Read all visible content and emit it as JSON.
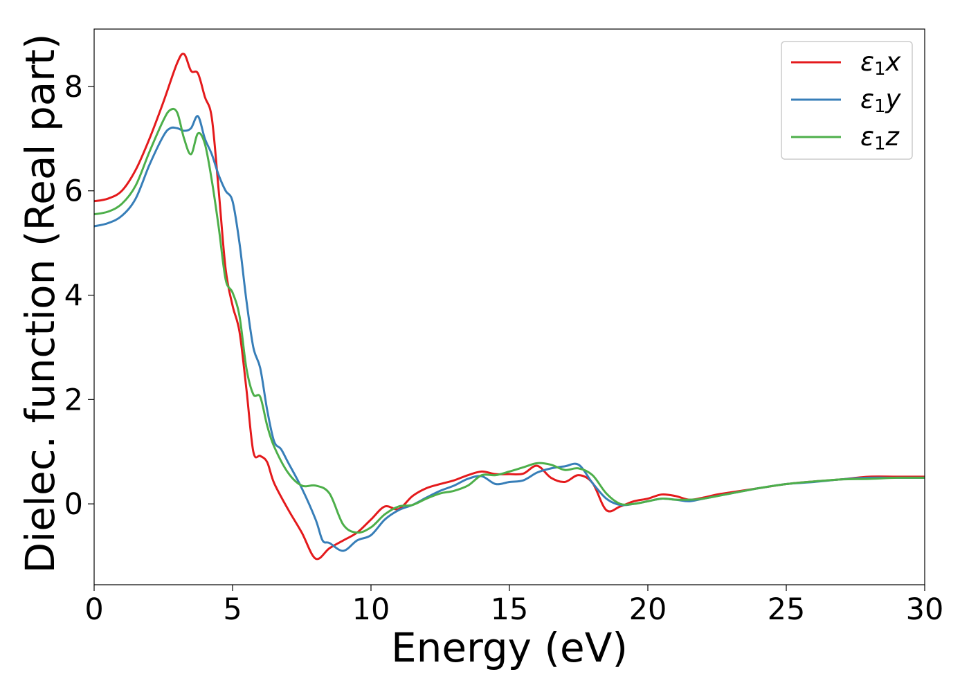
{
  "chart_data": {
    "type": "line",
    "title": "",
    "xlabel": "Energy (eV)",
    "ylabel": "Dielec. function (Real part)",
    "xlim": [
      0,
      30
    ],
    "ylim": [
      -1.55,
      9.1
    ],
    "xticks": [
      0,
      5,
      10,
      15,
      20,
      25,
      30
    ],
    "yticks": [
      0,
      2,
      4,
      6,
      8
    ],
    "grid": false,
    "legend_position": "top-right",
    "series": [
      {
        "name": "ε₁x",
        "legend": {
          "base": "ε",
          "sub": "1",
          "var": "x"
        },
        "color": "#e41a1c",
        "x": [
          0,
          0.5,
          1.0,
          1.5,
          2.0,
          2.5,
          3.0,
          3.25,
          3.5,
          3.75,
          4.0,
          4.25,
          4.5,
          4.75,
          5.0,
          5.25,
          5.5,
          5.75,
          6.0,
          6.25,
          6.5,
          7.0,
          7.5,
          8.0,
          8.5,
          9.0,
          9.5,
          10.0,
          10.5,
          11.0,
          11.5,
          12.0,
          12.5,
          13.0,
          13.5,
          14.0,
          14.5,
          15.0,
          15.5,
          16.0,
          16.5,
          17.0,
          17.5,
          18.0,
          18.5,
          19.0,
          19.5,
          20.0,
          20.5,
          21.0,
          21.5,
          22.0,
          22.5,
          23.0,
          24.0,
          25.0,
          26.0,
          27.0,
          28.0,
          29.0,
          30.0
        ],
        "values": [
          5.8,
          5.85,
          6.0,
          6.4,
          7.0,
          7.7,
          8.45,
          8.62,
          8.3,
          8.25,
          7.8,
          7.4,
          6.0,
          4.5,
          3.8,
          3.3,
          2.2,
          1.0,
          0.92,
          0.8,
          0.4,
          -0.1,
          -0.55,
          -1.05,
          -0.85,
          -0.7,
          -0.55,
          -0.3,
          -0.05,
          -0.1,
          0.15,
          0.3,
          0.38,
          0.45,
          0.55,
          0.62,
          0.57,
          0.57,
          0.58,
          0.73,
          0.5,
          0.42,
          0.55,
          0.4,
          -0.12,
          -0.05,
          0.05,
          0.1,
          0.18,
          0.15,
          0.08,
          0.12,
          0.18,
          0.22,
          0.3,
          0.38,
          0.43,
          0.47,
          0.52,
          0.52,
          0.52
        ]
      },
      {
        "name": "ε₁y",
        "legend": {
          "base": "ε",
          "sub": "1",
          "var": "y"
        },
        "color": "#377eb8",
        "x": [
          0,
          0.5,
          1.0,
          1.5,
          2.0,
          2.5,
          2.75,
          3.0,
          3.25,
          3.5,
          3.75,
          4.0,
          4.25,
          4.5,
          4.75,
          5.0,
          5.25,
          5.5,
          5.75,
          6.0,
          6.25,
          6.5,
          6.75,
          7.0,
          7.5,
          8.0,
          8.25,
          8.5,
          9.0,
          9.5,
          10.0,
          10.5,
          11.0,
          11.5,
          12.0,
          12.5,
          13.0,
          13.5,
          14.0,
          14.5,
          15.0,
          15.5,
          16.0,
          16.5,
          17.0,
          17.5,
          18.0,
          18.5,
          19.0,
          19.5,
          20.0,
          20.5,
          21.0,
          21.5,
          22.0,
          23.0,
          24.0,
          25.0,
          26.0,
          27.0,
          28.0,
          29.0,
          30.0
        ],
        "values": [
          5.32,
          5.38,
          5.52,
          5.85,
          6.5,
          7.05,
          7.2,
          7.2,
          7.15,
          7.2,
          7.43,
          7.0,
          6.7,
          6.3,
          6.0,
          5.8,
          5.0,
          3.9,
          3.0,
          2.6,
          1.8,
          1.2,
          1.05,
          0.8,
          0.3,
          -0.3,
          -0.7,
          -0.75,
          -0.9,
          -0.7,
          -0.6,
          -0.3,
          -0.12,
          -0.02,
          0.12,
          0.25,
          0.35,
          0.48,
          0.53,
          0.38,
          0.42,
          0.45,
          0.6,
          0.68,
          0.72,
          0.75,
          0.4,
          0.1,
          -0.02,
          0.0,
          0.05,
          0.1,
          0.08,
          0.05,
          0.1,
          0.2,
          0.3,
          0.38,
          0.42,
          0.47,
          0.5,
          0.5,
          0.5
        ]
      },
      {
        "name": "ε₁z",
        "legend": {
          "base": "ε",
          "sub": "1",
          "var": "z"
        },
        "color": "#4daf4a",
        "x": [
          0,
          0.5,
          1.0,
          1.5,
          2.0,
          2.5,
          2.75,
          3.0,
          3.25,
          3.5,
          3.75,
          4.0,
          4.25,
          4.5,
          4.75,
          5.0,
          5.25,
          5.5,
          5.75,
          6.0,
          6.25,
          6.5,
          7.0,
          7.5,
          8.0,
          8.5,
          9.0,
          9.5,
          10.0,
          10.5,
          11.0,
          11.5,
          12.0,
          12.5,
          13.0,
          13.5,
          14.0,
          14.5,
          15.0,
          15.5,
          16.0,
          16.5,
          17.0,
          17.5,
          18.0,
          18.5,
          19.0,
          19.5,
          20.0,
          20.5,
          21.0,
          21.5,
          22.0,
          23.0,
          24.0,
          25.0,
          26.0,
          27.0,
          28.0,
          29.0,
          30.0
        ],
        "values": [
          5.55,
          5.6,
          5.75,
          6.1,
          6.75,
          7.35,
          7.55,
          7.5,
          7.0,
          6.7,
          7.1,
          6.9,
          6.2,
          5.3,
          4.3,
          4.05,
          3.6,
          2.6,
          2.1,
          2.05,
          1.5,
          1.1,
          0.6,
          0.35,
          0.35,
          0.2,
          -0.4,
          -0.55,
          -0.45,
          -0.2,
          -0.05,
          -0.02,
          0.1,
          0.2,
          0.25,
          0.35,
          0.55,
          0.55,
          0.62,
          0.7,
          0.78,
          0.75,
          0.65,
          0.68,
          0.55,
          0.2,
          0.0,
          0.0,
          0.05,
          0.1,
          0.08,
          0.08,
          0.1,
          0.2,
          0.3,
          0.38,
          0.43,
          0.47,
          0.48,
          0.5,
          0.5
        ]
      }
    ]
  }
}
